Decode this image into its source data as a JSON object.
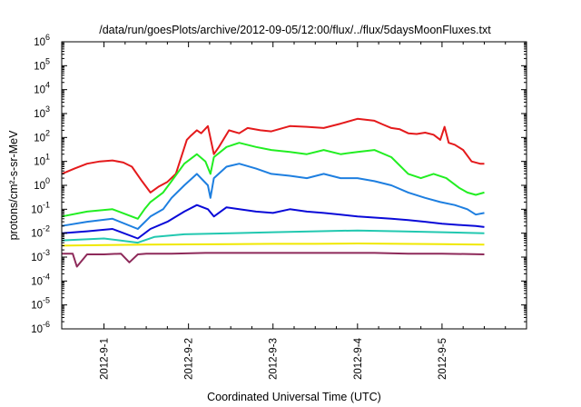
{
  "chart_data": {
    "type": "line",
    "title": "/data/run/goesPlots/archive/2012-09-05/12:00/flux/../flux/5daysMoonFluxes.txt",
    "xlabel": "Coordinated Universal Time (UTC)",
    "ylabel": "protons/cm²-s-sr-MeV",
    "y_scale": "log",
    "ylim": [
      1e-06,
      1000000.0
    ],
    "xlim_days": [
      0.0,
      5.5
    ],
    "x_origin": "2012-08-31T12:00",
    "x_ticks": [
      {
        "x": "2012-09-01",
        "label": "2012-9-1"
      },
      {
        "x": "2012-09-02",
        "label": "2012-9-2"
      },
      {
        "x": "2012-09-03",
        "label": "2012-9-3"
      },
      {
        "x": "2012-09-04",
        "label": "2012-9-4"
      },
      {
        "x": "2012-09-05",
        "label": "2012-9-5"
      }
    ],
    "y_ticks": [
      {
        "value": 1e-06,
        "base": "10",
        "exp": "-6"
      },
      {
        "value": 1e-05,
        "base": "10",
        "exp": "-5"
      },
      {
        "value": 0.0001,
        "base": "10",
        "exp": "-4"
      },
      {
        "value": 0.001,
        "base": "10",
        "exp": "-3"
      },
      {
        "value": 0.01,
        "base": "10",
        "exp": "-2"
      },
      {
        "value": 0.1,
        "base": "10",
        "exp": "-1"
      },
      {
        "value": 1.0,
        "base": "10",
        "exp": "0"
      },
      {
        "value": 10.0,
        "base": "10",
        "exp": "1"
      },
      {
        "value": 100.0,
        "base": "10",
        "exp": "2"
      },
      {
        "value": 1000.0,
        "base": "10",
        "exp": "3"
      },
      {
        "value": 10000.0,
        "base": "10",
        "exp": "4"
      },
      {
        "value": 100000.0,
        "base": "10",
        "exp": "5"
      },
      {
        "value": 1000000.0,
        "base": "10",
        "exp": "6"
      }
    ],
    "grid": false,
    "legend": "none",
    "series": [
      {
        "color": "#e41a1c",
        "x": [
          "2012-08-31T12:00",
          "2012-08-31T15:36",
          "2012-08-31T19:12",
          "2012-08-31T22:48",
          "2012-09-01T02:24",
          "2012-09-01T05:31",
          "2012-09-01T07:55",
          "2012-09-01T10:48",
          "2012-09-01T13:12",
          "2012-09-01T15:36",
          "2012-09-01T18:00",
          "2012-09-01T20:24",
          "2012-09-01T23:31",
          "2012-09-02T00:43",
          "2012-09-02T02:24",
          "2012-09-02T03:36",
          "2012-09-02T05:31",
          "2012-09-02T07:12",
          "2012-09-02T08:38",
          "2012-09-02T11:31",
          "2012-09-02T14:24",
          "2012-09-02T16:48",
          "2012-09-02T20:24",
          "2012-09-02T23:31",
          "2012-09-03T04:48",
          "2012-09-03T09:36",
          "2012-09-03T14:24",
          "2012-09-03T19:12",
          "2012-09-04T00:00",
          "2012-09-04T04:48",
          "2012-09-04T07:12",
          "2012-09-04T09:36",
          "2012-09-04T12:00",
          "2012-09-04T14:24",
          "2012-09-04T16:48",
          "2012-09-04T19:12",
          "2012-09-04T21:36",
          "2012-09-04T23:31",
          "2012-09-05T00:43",
          "2012-09-05T01:55",
          "2012-09-05T03:36",
          "2012-09-05T06:00",
          "2012-09-05T08:24",
          "2012-09-05T10:48",
          "2012-09-05T12:00"
        ],
        "y": [
          3,
          5,
          8,
          10,
          11,
          9,
          6,
          1.5,
          0.5,
          0.9,
          1.4,
          3,
          80,
          120,
          200,
          150,
          300,
          20,
          40,
          200,
          150,
          250,
          200,
          180,
          300,
          280,
          250,
          380,
          600,
          500,
          350,
          250,
          220,
          150,
          140,
          160,
          130,
          80,
          280,
          60,
          50,
          30,
          10,
          8,
          8
        ]
      },
      {
        "color": "#22ee22",
        "x": [
          "2012-08-31T12:00",
          "2012-08-31T19:12",
          "2012-09-01T02:24",
          "2012-09-01T09:36",
          "2012-09-01T11:31",
          "2012-09-01T13:12",
          "2012-09-01T16:48",
          "2012-09-01T19:12",
          "2012-09-01T22:48",
          "2012-09-02T02:24",
          "2012-09-02T04:48",
          "2012-09-02T06:14",
          "2012-09-02T07:12",
          "2012-09-02T10:48",
          "2012-09-02T14:24",
          "2012-09-02T19:12",
          "2012-09-02T23:31",
          "2012-09-03T04:48",
          "2012-09-03T09:36",
          "2012-09-03T14:24",
          "2012-09-03T19:12",
          "2012-09-04T00:00",
          "2012-09-04T04:48",
          "2012-09-04T09:36",
          "2012-09-04T14:24",
          "2012-09-04T18:00",
          "2012-09-04T21:36",
          "2012-09-05T01:12",
          "2012-09-05T04:48",
          "2012-09-05T07:12",
          "2012-09-05T09:36",
          "2012-09-05T12:00"
        ],
        "y": [
          0.05,
          0.08,
          0.1,
          0.04,
          0.1,
          0.2,
          0.5,
          1.5,
          8,
          20,
          10,
          3,
          15,
          40,
          60,
          40,
          30,
          25,
          20,
          30,
          20,
          25,
          30,
          15,
          3,
          2,
          3,
          2,
          0.8,
          0.5,
          0.4,
          0.5
        ]
      },
      {
        "color": "#1e7fe0",
        "x": [
          "2012-08-31T12:00",
          "2012-08-31T19:12",
          "2012-09-01T02:24",
          "2012-09-01T09:36",
          "2012-09-01T13:12",
          "2012-09-01T16:48",
          "2012-09-01T19:12",
          "2012-09-01T22:48",
          "2012-09-02T02:24",
          "2012-09-02T05:31",
          "2012-09-02T06:14",
          "2012-09-02T07:12",
          "2012-09-02T10:48",
          "2012-09-02T14:24",
          "2012-09-02T19:12",
          "2012-09-02T23:31",
          "2012-09-03T04:48",
          "2012-09-03T09:36",
          "2012-09-03T14:24",
          "2012-09-03T19:12",
          "2012-09-04T00:00",
          "2012-09-04T04:48",
          "2012-09-04T09:36",
          "2012-09-04T14:24",
          "2012-09-04T19:12",
          "2012-09-04T23:31",
          "2012-09-05T03:36",
          "2012-09-05T07:12",
          "2012-09-05T09:36",
          "2012-09-05T12:00"
        ],
        "y": [
          0.02,
          0.03,
          0.04,
          0.015,
          0.05,
          0.1,
          0.3,
          1,
          3,
          1,
          0.3,
          2,
          6,
          8,
          5,
          3,
          2.5,
          2,
          3,
          2,
          2,
          1.5,
          1,
          0.5,
          0.3,
          0.2,
          0.15,
          0.1,
          0.06,
          0.07
        ]
      },
      {
        "color": "#0a0ad8",
        "x": [
          "2012-08-31T12:00",
          "2012-08-31T19:12",
          "2012-09-01T02:24",
          "2012-09-01T09:36",
          "2012-09-01T13:12",
          "2012-09-01T18:00",
          "2012-09-01T22:48",
          "2012-09-02T02:24",
          "2012-09-02T05:31",
          "2012-09-02T07:12",
          "2012-09-02T10:48",
          "2012-09-02T14:24",
          "2012-09-02T19:12",
          "2012-09-03T00:00",
          "2012-09-03T04:48",
          "2012-09-03T09:36",
          "2012-09-03T14:24",
          "2012-09-03T19:12",
          "2012-09-04T00:00",
          "2012-09-04T04:48",
          "2012-09-04T09:36",
          "2012-09-04T14:24",
          "2012-09-04T19:12",
          "2012-09-05T00:00",
          "2012-09-05T04:48",
          "2012-09-05T09:36",
          "2012-09-05T12:00"
        ],
        "y": [
          0.01,
          0.012,
          0.015,
          0.006,
          0.015,
          0.03,
          0.08,
          0.15,
          0.1,
          0.05,
          0.12,
          0.1,
          0.08,
          0.07,
          0.1,
          0.08,
          0.07,
          0.06,
          0.05,
          0.045,
          0.04,
          0.035,
          0.03,
          0.025,
          0.022,
          0.02,
          0.018
        ]
      },
      {
        "color": "#22c8b0",
        "x": [
          "2012-08-31T12:00",
          "2012-09-01T00:00",
          "2012-09-01T09:36",
          "2012-09-01T14:24",
          "2012-09-01T22:48",
          "2012-09-02T12:00",
          "2012-09-03T00:00",
          "2012-09-03T12:00",
          "2012-09-04T00:00",
          "2012-09-04T12:00",
          "2012-09-05T00:00",
          "2012-09-05T12:00"
        ],
        "y": [
          0.005,
          0.006,
          0.004,
          0.007,
          0.009,
          0.01,
          0.011,
          0.012,
          0.013,
          0.012,
          0.011,
          0.01
        ]
      },
      {
        "color": "#f0e800",
        "x": [
          "2012-08-31T12:00",
          "2012-09-01T00:00",
          "2012-09-01T12:00",
          "2012-09-02T00:00",
          "2012-09-02T12:00",
          "2012-09-03T00:00",
          "2012-09-03T12:00",
          "2012-09-04T00:00",
          "2012-09-04T12:00",
          "2012-09-05T00:00",
          "2012-09-05T12:00"
        ],
        "y": [
          0.003,
          0.0032,
          0.0033,
          0.0034,
          0.0035,
          0.0036,
          0.0036,
          0.0037,
          0.0036,
          0.0035,
          0.0033
        ]
      },
      {
        "color": "#8e2a5a",
        "x": [
          "2012-08-31T12:00",
          "2012-08-31T15:07",
          "2012-08-31T16:19",
          "2012-08-31T19:12",
          "2012-09-01T00:00",
          "2012-09-01T04:48",
          "2012-09-01T07:12",
          "2012-09-01T09:36",
          "2012-09-01T12:00",
          "2012-09-01T19:12",
          "2012-09-02T04:48",
          "2012-09-02T14:24",
          "2012-09-03T00:00",
          "2012-09-03T09:36",
          "2012-09-03T19:12",
          "2012-09-04T04:48",
          "2012-09-04T14:24",
          "2012-09-05T00:00",
          "2012-09-05T12:00"
        ],
        "y": [
          0.0014,
          0.0014,
          0.0004,
          0.0013,
          0.0013,
          0.0014,
          0.0006,
          0.0013,
          0.0014,
          0.0014,
          0.0015,
          0.0015,
          0.0015,
          0.0015,
          0.0015,
          0.0015,
          0.0014,
          0.0014,
          0.0013
        ]
      }
    ]
  }
}
